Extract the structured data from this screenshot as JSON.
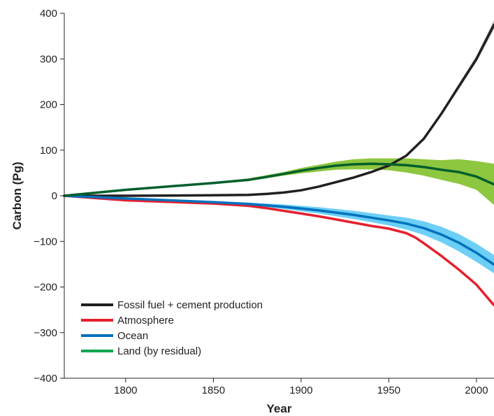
{
  "chart_data": {
    "type": "line",
    "xlabel": "Year",
    "ylabel": "Carbon (Pg)",
    "xlim": [
      1765,
      2010
    ],
    "ylim": [
      -400,
      400
    ],
    "xticks": [
      1800,
      1850,
      1900,
      1950,
      2000
    ],
    "yticks": [
      400,
      300,
      200,
      100,
      0,
      -100,
      -200,
      -300,
      -400
    ],
    "ytick_labels": [
      "400",
      "300",
      "200",
      "100",
      "0",
      "−100",
      "−200",
      "−300",
      "−400"
    ],
    "grid": false,
    "legend_position": "bottom-left",
    "series": [
      {
        "name": "Fossil fuel + cement production",
        "color": "#231f20",
        "band_color": "#bcbec0",
        "x": [
          1765,
          1800,
          1850,
          1870,
          1880,
          1890,
          1900,
          1910,
          1920,
          1930,
          1940,
          1950,
          1960,
          1970,
          1980,
          1990,
          2000,
          2010
        ],
        "y": [
          0,
          0,
          1,
          2,
          4,
          7,
          12,
          20,
          30,
          40,
          52,
          66,
          88,
          125,
          180,
          240,
          300,
          375
        ],
        "lower": [
          0,
          0,
          1,
          2,
          4,
          7,
          12,
          20,
          30,
          40,
          52,
          66,
          87,
          123,
          176,
          234,
          293,
          365
        ],
        "upper": [
          0,
          0,
          1,
          2,
          4,
          7,
          12,
          20,
          30,
          40,
          52,
          66,
          89,
          127,
          184,
          246,
          307,
          385
        ]
      },
      {
        "name": "Atmosphere",
        "color": "#e5202e",
        "x": [
          1765,
          1800,
          1850,
          1870,
          1880,
          1890,
          1900,
          1910,
          1920,
          1930,
          1940,
          1950,
          1960,
          1965,
          1970,
          1975,
          1980,
          1990,
          2000,
          2010
        ],
        "y": [
          0,
          -10,
          -17,
          -22,
          -27,
          -33,
          -39,
          -45,
          -52,
          -59,
          -66,
          -72,
          -82,
          -91,
          -104,
          -118,
          -132,
          -162,
          -195,
          -240
        ]
      },
      {
        "name": "Ocean",
        "color": "#0072bc",
        "band_color": "#6dcff6",
        "x": [
          1765,
          1800,
          1850,
          1870,
          1880,
          1890,
          1900,
          1910,
          1920,
          1930,
          1940,
          1950,
          1960,
          1970,
          1980,
          1990,
          2000,
          2010
        ],
        "y": [
          0,
          -6,
          -14,
          -18,
          -21,
          -24,
          -28,
          -32,
          -37,
          -42,
          -48,
          -54,
          -61,
          -71,
          -85,
          -103,
          -125,
          -151
        ],
        "lower": [
          0,
          -7,
          -16,
          -21,
          -25,
          -29,
          -34,
          -39,
          -45,
          -51,
          -58,
          -65,
          -74,
          -86,
          -102,
          -122,
          -145,
          -170
        ],
        "upper": [
          0,
          -5,
          -12,
          -15,
          -17,
          -19,
          -22,
          -25,
          -29,
          -33,
          -38,
          -43,
          -48,
          -56,
          -68,
          -84,
          -105,
          -130
        ]
      },
      {
        "name": "Land (by residual)",
        "color": "#00a651",
        "line_color": "#005f2b",
        "band_color": "#8dc63f",
        "x": [
          1765,
          1800,
          1850,
          1870,
          1880,
          1890,
          1900,
          1910,
          1920,
          1930,
          1940,
          1950,
          1960,
          1970,
          1980,
          1990,
          2000,
          2010
        ],
        "y": [
          0,
          13,
          28,
          35,
          41,
          48,
          55,
          61,
          66,
          69,
          70,
          69,
          67,
          63,
          57,
          52,
          42,
          25
        ],
        "lower": [
          0,
          12,
          26,
          32,
          38,
          44,
          49,
          53,
          57,
          58,
          58,
          56,
          51,
          44,
          35,
          26,
          13,
          -20
        ],
        "upper": [
          0,
          14,
          30,
          38,
          45,
          52,
          61,
          68,
          75,
          80,
          82,
          82,
          82,
          80,
          78,
          80,
          76,
          70
        ]
      }
    ]
  }
}
